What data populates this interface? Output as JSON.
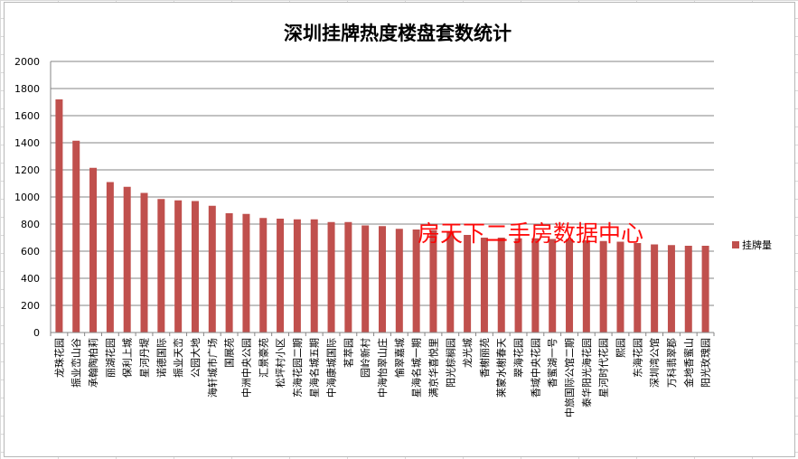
{
  "chart_data": {
    "type": "bar",
    "title": "深圳挂牌热度楼盘套数统计",
    "xlabel": "",
    "ylabel": "",
    "ylim": [
      0,
      2000
    ],
    "yticks": [
      0,
      200,
      400,
      600,
      800,
      1000,
      1200,
      1400,
      1600,
      1800,
      2000
    ],
    "grid": true,
    "legend_position": "right",
    "bar_color": "#c0504d",
    "watermark": "房天下二手房数据中心",
    "watermark_color": "#ff0000",
    "categories": [
      "龙珠花园",
      "振业峦山谷",
      "承翰陶柏莉",
      "丽湖花园",
      "保利上城",
      "星河丹堤",
      "诺德国际",
      "振业天峦",
      "公园大地",
      "海轩城市广场",
      "国展苑",
      "中洲中央公园",
      "汇景豪苑",
      "松坪村小区",
      "东海花园二期",
      "星海名城五期",
      "中海康城国际",
      "茗萃园",
      "园岭新村",
      "中海怡翠山庄",
      "愉翠嘉城",
      "星海名城一期",
      "满京华喜悦里",
      "阳光棕榈园",
      "龙光城",
      "香榭丽苑",
      "莱蒙水榭春天",
      "翠海花园",
      "香域中央花园",
      "香蜜湖一号",
      "中旅国际公馆二期",
      "泰华阳光海花园",
      "星河时代花园",
      "熙园",
      "东海花园",
      "深圳湾公馆",
      "万科翡翠郡",
      "金地香蜜山",
      "阳光玫瑰园"
    ],
    "series": [
      {
        "name": "挂牌量",
        "values": [
          1720,
          1415,
          1215,
          1110,
          1075,
          1030,
          985,
          975,
          970,
          935,
          880,
          875,
          845,
          840,
          835,
          835,
          815,
          815,
          790,
          785,
          765,
          760,
          755,
          745,
          720,
          700,
          700,
          695,
          695,
          690,
          690,
          680,
          675,
          670,
          660,
          650,
          645,
          640,
          640
        ]
      }
    ]
  }
}
